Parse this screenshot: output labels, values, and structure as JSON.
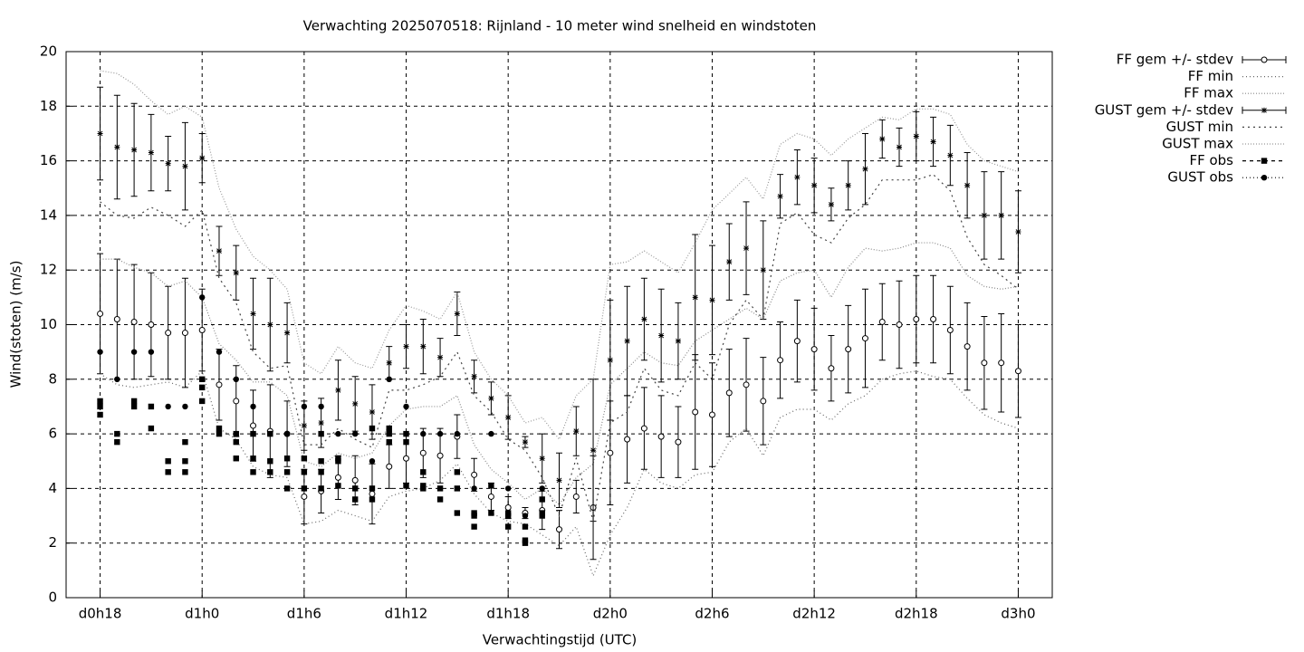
{
  "chart_data": {
    "type": "errorbar",
    "title": "Verwachting 2025070518: Rijnland - 10 meter wind snelheid en windstoten",
    "x_label": "Verwachtingstijd (UTC)",
    "y_label": "Wind(stoten) (m/s)",
    "xlim": [
      16,
      74
    ],
    "ylim": [
      0,
      20
    ],
    "xticks": [
      {
        "value": 18,
        "label": "d0h18"
      },
      {
        "value": 24,
        "label": "d1h0"
      },
      {
        "value": 30,
        "label": "d1h6"
      },
      {
        "value": 36,
        "label": "d1h12"
      },
      {
        "value": 42,
        "label": "d1h18"
      },
      {
        "value": 48,
        "label": "d2h0"
      },
      {
        "value": 54,
        "label": "d2h6"
      },
      {
        "value": 60,
        "label": "d2h12"
      },
      {
        "value": 66,
        "label": "d2h18"
      },
      {
        "value": 72,
        "label": "d3h0"
      }
    ],
    "yticks": [
      0,
      2,
      4,
      6,
      8,
      10,
      12,
      14,
      16,
      18,
      20
    ],
    "grid": true,
    "legend": "outside-right",
    "x": [
      18,
      19,
      20,
      21,
      22,
      23,
      24,
      25,
      26,
      27,
      28,
      29,
      30,
      31,
      32,
      33,
      34,
      35,
      36,
      37,
      38,
      39,
      40,
      41,
      42,
      43,
      44,
      45,
      46,
      47,
      48,
      49,
      50,
      51,
      52,
      53,
      54,
      55,
      56,
      57,
      58,
      59,
      60,
      61,
      62,
      63,
      64,
      65,
      66,
      67,
      68,
      69,
      70,
      71,
      72
    ],
    "series": [
      {
        "name": "FF gem +/- stdev",
        "style": "errorbar",
        "marker": "open-circle",
        "color": "#000000",
        "values": [
          10.4,
          10.2,
          10.1,
          10.0,
          9.7,
          9.7,
          9.8,
          7.8,
          7.2,
          6.3,
          6.1,
          6.0,
          3.7,
          3.9,
          4.4,
          4.3,
          3.8,
          4.8,
          5.1,
          5.3,
          5.2,
          5.9,
          4.5,
          3.7,
          3.3,
          3.1,
          3.2,
          2.5,
          3.7,
          3.3,
          5.3,
          5.8,
          6.2,
          5.9,
          5.7,
          6.8,
          6.7,
          7.5,
          7.8,
          7.2,
          8.7,
          9.4,
          9.1,
          8.4,
          9.1,
          9.5,
          10.1,
          10.0,
          10.2,
          10.2,
          9.8,
          9.2,
          8.6,
          8.6,
          8.3
        ],
        "errors": [
          2.2,
          2.2,
          2.1,
          1.9,
          1.7,
          2.0,
          1.5,
          1.3,
          1.3,
          1.3,
          1.7,
          1.2,
          1.0,
          0.8,
          0.8,
          0.9,
          1.1,
          0.8,
          0.9,
          0.9,
          1.0,
          0.8,
          0.6,
          0.5,
          0.4,
          0.2,
          0.7,
          0.7,
          0.6,
          1.9,
          1.9,
          1.6,
          1.5,
          1.5,
          1.3,
          2.1,
          1.9,
          1.6,
          1.7,
          1.6,
          1.4,
          1.5,
          1.5,
          1.2,
          1.6,
          1.8,
          1.4,
          1.6,
          1.6,
          1.6,
          1.6,
          1.6,
          1.7,
          1.8,
          1.7
        ]
      },
      {
        "name": "FF min",
        "style": "line",
        "color": "#666666",
        "dash": "1,3",
        "values": [
          8.2,
          7.8,
          7.7,
          7.8,
          7.9,
          7.7,
          8.3,
          6.2,
          5.8,
          4.8,
          4.5,
          4.4,
          2.7,
          2.8,
          3.2,
          3.0,
          2.8,
          3.7,
          3.9,
          4.0,
          4.3,
          4.9,
          3.8,
          3.1,
          2.8,
          2.7,
          2.3,
          1.9,
          2.6,
          0.8,
          2.3,
          3.3,
          4.7,
          4.2,
          4.0,
          4.5,
          4.6,
          5.7,
          6.2,
          5.2,
          6.6,
          6.9,
          6.9,
          6.5,
          7.1,
          7.4,
          8.0,
          8.2,
          8.3,
          8.1,
          8.0,
          7.3,
          6.7,
          6.4,
          6.2
        ]
      },
      {
        "name": "FF max",
        "style": "line",
        "color": "#888888",
        "dash": "1,2",
        "values": [
          12.4,
          12.4,
          12.1,
          11.9,
          11.4,
          11.6,
          11.0,
          9.3,
          8.7,
          7.9,
          7.9,
          7.4,
          5.0,
          4.8,
          5.3,
          5.1,
          5.3,
          6.3,
          6.9,
          7.0,
          7.0,
          7.4,
          5.6,
          4.7,
          4.2,
          3.6,
          4.0,
          3.4,
          4.4,
          4.9,
          7.8,
          8.4,
          9.0,
          8.6,
          8.5,
          9.4,
          9.8,
          10.2,
          10.6,
          10.2,
          11.6,
          11.9,
          12.0,
          11.0,
          12.1,
          12.8,
          12.7,
          12.8,
          13.0,
          13.0,
          12.8,
          11.8,
          11.4,
          11.3,
          11.4
        ]
      },
      {
        "name": "GUST gem +/- stdev",
        "style": "errorbar",
        "marker": "star",
        "color": "#000000",
        "values": [
          17.0,
          16.5,
          16.4,
          16.3,
          15.9,
          15.8,
          16.1,
          12.7,
          11.9,
          10.4,
          10.0,
          9.7,
          6.3,
          6.4,
          7.6,
          7.1,
          6.8,
          8.6,
          9.2,
          9.2,
          8.8,
          10.4,
          8.1,
          7.3,
          6.6,
          5.7,
          5.1,
          4.3,
          6.1,
          5.4,
          8.7,
          9.4,
          10.2,
          9.6,
          9.4,
          11.0,
          10.9,
          12.3,
          12.8,
          12.0,
          14.7,
          15.4,
          15.1,
          14.4,
          15.1,
          15.7,
          16.8,
          16.5,
          16.9,
          16.7,
          16.2,
          15.1,
          14.0,
          14.0,
          13.4
        ],
        "errors": [
          1.7,
          1.9,
          1.7,
          1.4,
          1.0,
          1.6,
          0.9,
          0.9,
          1.0,
          1.3,
          1.7,
          1.1,
          0.9,
          0.9,
          1.1,
          1.0,
          1.0,
          0.6,
          0.8,
          1.0,
          0.7,
          0.8,
          0.6,
          0.6,
          0.8,
          0.2,
          0.9,
          1.0,
          0.9,
          2.6,
          2.2,
          2.0,
          1.5,
          1.7,
          1.4,
          2.3,
          2.0,
          1.4,
          1.7,
          1.8,
          0.8,
          1.0,
          1.0,
          0.6,
          0.9,
          1.3,
          0.7,
          0.7,
          0.9,
          0.9,
          1.1,
          1.2,
          1.6,
          1.6,
          1.5
        ]
      },
      {
        "name": "GUST min",
        "style": "line",
        "color": "#444444",
        "dash": "2,4",
        "values": [
          14.5,
          14.0,
          13.9,
          14.3,
          14.0,
          13.6,
          14.2,
          11.7,
          10.8,
          9.0,
          8.4,
          8.5,
          5.6,
          5.6,
          6.2,
          5.8,
          5.5,
          7.6,
          7.6,
          7.8,
          8.1,
          9.0,
          7.4,
          6.8,
          5.8,
          5.4,
          4.4,
          3.0,
          5.1,
          2.8,
          6.4,
          6.8,
          8.4,
          7.6,
          7.4,
          8.6,
          8.0,
          10.0,
          10.9,
          10.2,
          13.7,
          14.1,
          13.3,
          13.0,
          13.9,
          14.4,
          15.3,
          15.3,
          15.3,
          15.5,
          14.9,
          13.2,
          12.2,
          11.8,
          11.3
        ]
      },
      {
        "name": "GUST max",
        "style": "line",
        "color": "#999999",
        "dash": "1,2",
        "values": [
          19.3,
          19.2,
          18.8,
          18.2,
          17.7,
          18.0,
          17.6,
          15.0,
          13.5,
          12.5,
          12.0,
          11.3,
          8.6,
          8.2,
          9.2,
          8.6,
          8.4,
          9.8,
          10.7,
          10.5,
          10.2,
          11.2,
          9.0,
          8.0,
          7.4,
          6.4,
          6.6,
          5.8,
          7.4,
          8.0,
          12.2,
          12.3,
          12.7,
          12.3,
          11.9,
          13.0,
          14.2,
          14.8,
          15.4,
          14.6,
          16.6,
          17.0,
          16.8,
          16.2,
          16.8,
          17.2,
          17.6,
          17.5,
          17.9,
          17.9,
          17.7,
          16.6,
          16.0,
          15.8,
          15.6
        ]
      },
      {
        "name": "FF obs",
        "style": "points",
        "marker": "square",
        "color": "#000000",
        "dash": "4,4",
        "x": [
          18,
          18,
          18,
          19,
          19,
          20,
          20,
          21,
          21,
          22,
          22,
          23,
          23,
          23,
          24,
          24,
          24,
          25,
          25,
          26,
          26,
          26,
          27,
          27,
          27,
          28,
          28,
          28,
          29,
          29,
          29,
          30,
          30,
          30,
          31,
          31,
          31,
          31,
          32,
          32,
          32,
          33,
          33,
          34,
          34,
          34,
          35,
          35,
          35,
          36,
          36,
          36,
          37,
          37,
          37,
          38,
          38,
          39,
          39,
          39,
          40,
          40,
          40,
          41,
          41,
          42,
          42,
          42,
          43,
          43,
          43,
          44,
          44,
          44
        ],
        "values": [
          7.2,
          7.0,
          6.7,
          6.0,
          5.7,
          7.2,
          7.0,
          7.0,
          6.2,
          5.0,
          4.6,
          5.7,
          5.0,
          4.6,
          8.0,
          7.7,
          7.2,
          6.2,
          6.0,
          6.0,
          5.7,
          5.1,
          6.0,
          5.1,
          4.6,
          6.0,
          5.0,
          4.6,
          5.1,
          4.6,
          4.0,
          5.1,
          4.6,
          4.0,
          6.0,
          5.0,
          4.6,
          4.0,
          5.1,
          5.0,
          4.1,
          4.0,
          3.6,
          6.2,
          4.0,
          3.6,
          6.2,
          6.0,
          5.7,
          6.0,
          5.7,
          4.1,
          4.6,
          4.1,
          4.0,
          4.0,
          3.6,
          4.6,
          4.0,
          3.1,
          3.1,
          3.0,
          2.6,
          4.1,
          3.1,
          3.1,
          3.0,
          2.6,
          2.6,
          2.1,
          2.0,
          3.6,
          3.1,
          3.0
        ]
      },
      {
        "name": "GUST obs",
        "style": "points",
        "marker": "filled-circle",
        "color": "#000000",
        "dash": "1,3",
        "x": [
          18,
          19,
          20,
          21,
          22,
          23,
          24,
          25,
          26,
          27,
          28,
          29,
          30,
          31,
          32,
          33,
          34,
          35,
          36,
          37,
          38,
          39,
          40,
          41,
          42,
          43,
          44
        ],
        "values": [
          9,
          8,
          9,
          9,
          7,
          7,
          11,
          9,
          8,
          7,
          6,
          6,
          7,
          7,
          6,
          6,
          5,
          8,
          7,
          6,
          6,
          6,
          4,
          6,
          4,
          3,
          4
        ]
      }
    ]
  }
}
